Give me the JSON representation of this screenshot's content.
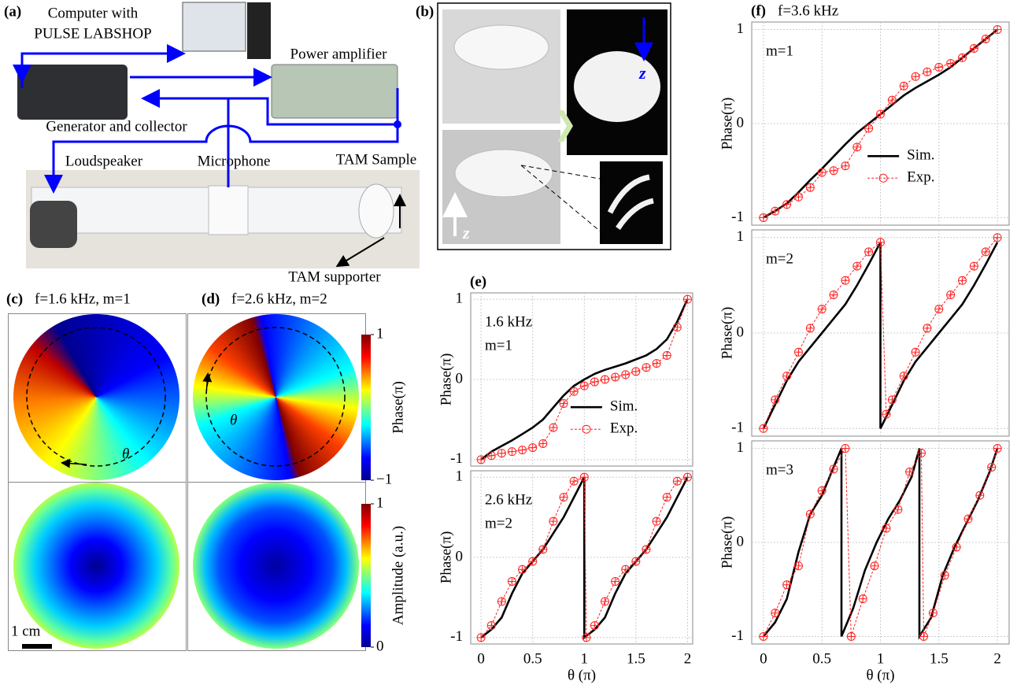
{
  "setup": {
    "label": "(a)",
    "computer": "Computer with",
    "software": "PULSE LABSHOP",
    "amplifier": "Power amplifier",
    "generator": "Generator and collector",
    "loudspeaker": "Loudspeaker",
    "microphone": "Microphone",
    "sample": "TAM Sample",
    "supporter": "TAM supporter"
  },
  "sample": {
    "label": "(b)",
    "axis_top": "z",
    "axis_bottom": "z"
  },
  "maps": {
    "c": {
      "label": "(c)",
      "title": "f=1.6 kHz, m=1",
      "angle_label": "θ"
    },
    "d": {
      "label": "(d)",
      "title": "f=2.6 kHz, m=2",
      "angle_label": "θ"
    },
    "scale_bar": "1 cm",
    "phase_colorbar": {
      "label": "Phase(π)",
      "clim": [
        -1,
        1
      ],
      "ticks": [
        1,
        {
          "value": -1,
          "label": "−1"
        }
      ]
    },
    "amplitude_colorbar": {
      "label": "Amplitude (a.u.)",
      "clim": [
        0,
        1
      ],
      "ticks": [
        1,
        0
      ]
    }
  },
  "chart_data": [
    {
      "type": "line",
      "panel_label": "(e)",
      "annotations": [
        "1.6 kHz",
        "m=1"
      ],
      "ylabel": "Phase(π)",
      "xlim": [
        -0.1,
        2.05
      ],
      "ylim": [
        -1.08,
        1.08
      ],
      "xticks": [
        0,
        0.5,
        1,
        1.5,
        2
      ],
      "yticks": [
        -1,
        0,
        1
      ],
      "xtick_labels": false,
      "grid": true,
      "legend": "center",
      "series": [
        {
          "name": "Sim.",
          "color": "#000000",
          "x": [
            0,
            0.1,
            0.2,
            0.3,
            0.4,
            0.5,
            0.6,
            0.7,
            0.8,
            0.9,
            1,
            1.1,
            1.2,
            1.3,
            1.4,
            1.5,
            1.6,
            1.7,
            1.8,
            1.9,
            2
          ],
          "values": [
            -1,
            -0.9,
            -0.83,
            -0.76,
            -0.68,
            -0.6,
            -0.5,
            -0.35,
            -0.2,
            -0.08,
            0,
            0.07,
            0.12,
            0.16,
            0.2,
            0.25,
            0.3,
            0.38,
            0.5,
            0.72,
            1
          ]
        },
        {
          "name": "Exp.",
          "color": "#ff2020",
          "marker": true,
          "x": [
            0,
            0.1,
            0.2,
            0.3,
            0.4,
            0.5,
            0.6,
            0.7,
            0.8,
            0.9,
            1,
            1.1,
            1.2,
            1.3,
            1.4,
            1.5,
            1.6,
            1.7,
            1.8,
            1.9,
            2
          ],
          "values": [
            -1,
            -0.95,
            -0.92,
            -0.9,
            -0.88,
            -0.85,
            -0.8,
            -0.6,
            -0.3,
            -0.15,
            -0.08,
            -0.03,
            0,
            0.03,
            0.06,
            0.1,
            0.15,
            0.2,
            0.3,
            0.65,
            1
          ]
        }
      ]
    },
    {
      "type": "line",
      "annotations": [
        "2.6 kHz",
        "m=2"
      ],
      "ylabel": "Phase(π)",
      "xlabel": "θ (π)",
      "xlim": [
        -0.1,
        2.05
      ],
      "ylim": [
        -1.08,
        1.08
      ],
      "xticks": [
        0,
        0.5,
        1,
        1.5,
        2
      ],
      "yticks": [
        -1,
        0,
        1
      ],
      "xtick_labels": true,
      "grid": true,
      "series": [
        {
          "color": "#000000",
          "x": [
            0,
            0.1,
            0.2,
            0.3,
            0.4,
            0.5,
            0.6,
            0.7,
            0.8,
            0.9,
            1,
            1,
            1.1,
            1.2,
            1.3,
            1.4,
            1.5,
            1.6,
            1.7,
            1.8,
            1.9,
            2
          ],
          "values": [
            -1,
            -0.9,
            -0.75,
            -0.45,
            -0.2,
            -0.05,
            0.1,
            0.3,
            0.5,
            0.75,
            1,
            -1,
            -0.9,
            -0.75,
            -0.45,
            -0.2,
            -0.05,
            0.1,
            0.3,
            0.5,
            0.75,
            1
          ]
        },
        {
          "color": "#ff2020",
          "marker": true,
          "x": [
            0,
            0.1,
            0.2,
            0.3,
            0.4,
            0.5,
            0.6,
            0.7,
            0.8,
            0.9,
            1,
            1.02,
            1.1,
            1.2,
            1.3,
            1.4,
            1.5,
            1.6,
            1.7,
            1.8,
            1.9,
            2
          ],
          "values": [
            -1,
            -0.85,
            -0.55,
            -0.3,
            -0.15,
            -0.05,
            0.1,
            0.45,
            0.75,
            0.95,
            1,
            -1,
            -0.85,
            -0.55,
            -0.3,
            -0.15,
            -0.05,
            0.1,
            0.45,
            0.75,
            0.95,
            1
          ]
        }
      ]
    },
    {
      "type": "line",
      "panel_label": "(f)",
      "title": "f=3.6 kHz",
      "annotations": [
        "m=1"
      ],
      "ylabel": "Phase(π)",
      "xlim": [
        -0.1,
        2.1
      ],
      "ylim": [
        -1.08,
        1.08
      ],
      "xticks": [
        0,
        0.5,
        1,
        1.5,
        2
      ],
      "yticks": [
        -1,
        0,
        1
      ],
      "xtick_labels": false,
      "grid": true,
      "legend": "center",
      "series": [
        {
          "name": "Sim.",
          "color": "#000000",
          "x": [
            0,
            0.1,
            0.2,
            0.3,
            0.4,
            0.5,
            0.6,
            0.7,
            0.8,
            0.9,
            1,
            1.1,
            1.2,
            1.3,
            1.4,
            1.5,
            1.6,
            1.7,
            1.8,
            1.9,
            2
          ],
          "values": [
            -1,
            -0.93,
            -0.85,
            -0.73,
            -0.6,
            -0.48,
            -0.35,
            -0.22,
            -0.1,
            0,
            0.1,
            0.2,
            0.3,
            0.38,
            0.45,
            0.52,
            0.6,
            0.7,
            0.8,
            0.9,
            1
          ]
        },
        {
          "name": "Exp.",
          "color": "#ff2020",
          "marker": true,
          "x": [
            0,
            0.1,
            0.2,
            0.3,
            0.4,
            0.5,
            0.6,
            0.7,
            0.8,
            0.9,
            1,
            1.1,
            1.2,
            1.3,
            1.4,
            1.5,
            1.6,
            1.7,
            1.8,
            1.9,
            2
          ],
          "values": [
            -1,
            -0.93,
            -0.86,
            -0.78,
            -0.68,
            -0.52,
            -0.5,
            -0.45,
            -0.25,
            -0.05,
            0.1,
            0.25,
            0.4,
            0.5,
            0.55,
            0.6,
            0.64,
            0.7,
            0.8,
            0.9,
            1
          ]
        }
      ]
    },
    {
      "type": "line",
      "annotations": [
        "m=2"
      ],
      "ylabel": "Phase(π)",
      "xlim": [
        -0.1,
        2.1
      ],
      "ylim": [
        -1.08,
        1.08
      ],
      "xticks": [
        0,
        0.5,
        1,
        1.5,
        2
      ],
      "yticks": [
        -1,
        0,
        1
      ],
      "xtick_labels": false,
      "grid": true,
      "series": [
        {
          "color": "#000000",
          "x": [
            0,
            0.1,
            0.2,
            0.3,
            0.4,
            0.5,
            0.6,
            0.7,
            0.8,
            0.9,
            1,
            1,
            1.1,
            1.2,
            1.3,
            1.4,
            1.5,
            1.6,
            1.7,
            1.8,
            1.9,
            2
          ],
          "values": [
            -1,
            -0.75,
            -0.5,
            -0.3,
            -0.15,
            0,
            0.15,
            0.3,
            0.5,
            0.72,
            0.95,
            -1,
            -0.75,
            -0.5,
            -0.3,
            -0.15,
            0,
            0.15,
            0.3,
            0.5,
            0.72,
            0.95
          ]
        },
        {
          "color": "#ff2020",
          "marker": true,
          "x": [
            0,
            0.1,
            0.2,
            0.3,
            0.4,
            0.5,
            0.6,
            0.7,
            0.8,
            0.9,
            1,
            1.05,
            1.1,
            1.2,
            1.3,
            1.4,
            1.5,
            1.6,
            1.7,
            1.8,
            1.9,
            2
          ],
          "values": [
            -1,
            -0.7,
            -0.45,
            -0.2,
            0.05,
            0.25,
            0.4,
            0.55,
            0.7,
            0.85,
            0.95,
            -0.85,
            -0.7,
            -0.45,
            -0.2,
            0.05,
            0.25,
            0.4,
            0.55,
            0.7,
            0.85,
            1
          ]
        }
      ]
    },
    {
      "type": "line",
      "annotations": [
        "m=3"
      ],
      "ylabel": "Phase(π)",
      "xlabel": "θ (π)",
      "xlim": [
        -0.1,
        2.1
      ],
      "ylim": [
        -1.08,
        1.08
      ],
      "xticks": [
        0,
        0.5,
        1,
        1.5,
        2
      ],
      "yticks": [
        -1,
        0,
        1
      ],
      "xtick_labels": true,
      "grid": true,
      "series": [
        {
          "color": "#000000",
          "x": [
            0,
            0.1,
            0.2,
            0.3,
            0.4,
            0.5,
            0.6,
            0.667,
            0.667,
            0.767,
            0.867,
            0.967,
            1.067,
            1.167,
            1.267,
            1.333,
            1.333,
            1.433,
            1.533,
            1.633,
            1.733,
            1.833,
            1.933,
            2
          ],
          "values": [
            -1,
            -0.85,
            -0.6,
            -0.1,
            0.3,
            0.5,
            0.8,
            1,
            -1,
            -0.7,
            -0.3,
            0,
            0.25,
            0.45,
            0.7,
            1,
            -1,
            -0.8,
            -0.35,
            -0.05,
            0.2,
            0.45,
            0.75,
            1
          ]
        },
        {
          "color": "#ff2020",
          "marker": true,
          "x": [
            0,
            0.1,
            0.2,
            0.3,
            0.4,
            0.5,
            0.6,
            0.7,
            0.75,
            0.85,
            0.95,
            1.05,
            1.15,
            1.25,
            1.35,
            1.37,
            1.45,
            1.55,
            1.65,
            1.75,
            1.85,
            1.95,
            2
          ],
          "values": [
            -1,
            -0.75,
            -0.45,
            -0.25,
            0.3,
            0.55,
            0.78,
            1,
            -1,
            -0.6,
            -0.25,
            0.15,
            0.35,
            0.75,
            0.95,
            -1,
            -0.75,
            -0.35,
            -0.05,
            0.25,
            0.5,
            0.8,
            1
          ]
        }
      ]
    }
  ]
}
